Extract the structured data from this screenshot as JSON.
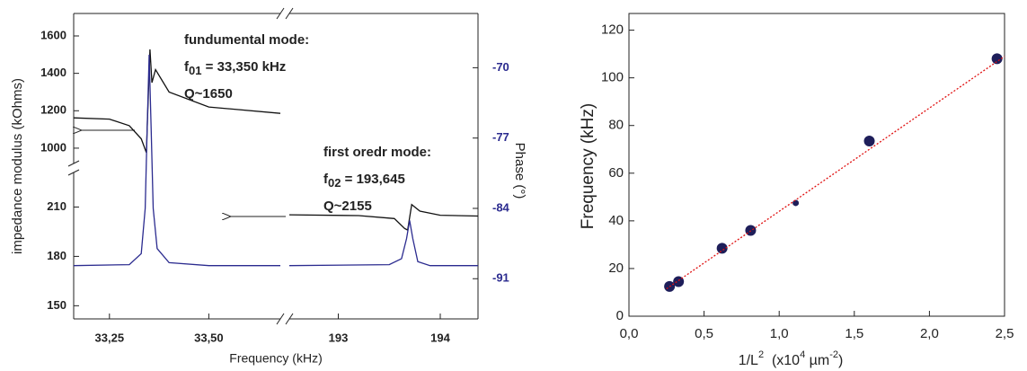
{
  "chart_data": [
    {
      "type": "line",
      "xlabel": "Frequency (kHz)",
      "ylabel": "impedance modulus (kOhms)",
      "y2label": "Phase (°)",
      "xsegments": [
        {
          "xlim": [
            33.16,
            33.68
          ],
          "xticks": [
            {
              "value": 33.25,
              "label": "33,25"
            },
            {
              "value": 33.5,
              "label": "33,50"
            }
          ]
        },
        {
          "xlim": [
            192.52,
            194.37
          ],
          "xticks": [
            193,
            194
          ]
        }
      ],
      "ysegments": [
        {
          "ylim": [
            142,
            231
          ],
          "yticks": [
            150,
            180,
            210
          ]
        },
        {
          "ylim": [
            918,
            1720
          ],
          "yticks": [
            1000,
            1200,
            1400,
            1600
          ]
        }
      ],
      "y2lim": [
        -95,
        -64.6
      ],
      "y2ticks": [
        -70,
        -77,
        -84,
        -91
      ],
      "y2color": "#2b2b8f",
      "series": [
        {
          "color": "#111111",
          "x": [
            33.16,
            33.25,
            33.3,
            33.33,
            33.343,
            33.348,
            33.352,
            33.357,
            33.366,
            33.4,
            33.5,
            33.68
          ],
          "values": [
            1162,
            1155,
            1120,
            1050,
            976,
            1300,
            1528,
            1350,
            1420,
            1300,
            1220,
            1186
          ]
        },
        {
          "color": "#111111",
          "x": [
            192.52,
            193.2,
            193.55,
            193.65,
            193.68,
            193.72,
            193.8,
            194.0,
            194.37
          ],
          "values": [
            205.3,
            204.8,
            203,
            197,
            196,
            211.5,
            207.5,
            205,
            204.5
          ]
        },
        {
          "color": "#2b2b8f",
          "axis": "y2",
          "x": [
            33.16,
            33.3,
            33.33,
            33.34,
            33.345,
            33.35,
            33.355,
            33.36,
            33.37,
            33.4,
            33.5,
            33.68
          ],
          "values": [
            -89.7,
            -89.6,
            -88.5,
            -84,
            -76,
            -68.7,
            -76,
            -84,
            -88,
            -89.4,
            -89.7,
            -89.7
          ]
        },
        {
          "color": "#2b2b8f",
          "axis": "y2",
          "x": [
            192.52,
            193.5,
            193.62,
            193.67,
            193.7,
            193.73,
            193.78,
            193.9,
            194.37
          ],
          "values": [
            -89.7,
            -89.6,
            -89,
            -87,
            -85.2,
            -87,
            -89.3,
            -89.7,
            -89.7
          ]
        }
      ],
      "mode_labels": [
        {
          "title": "fundumental mode:",
          "symbol": "f",
          "subscript": "01",
          "value": " = 33,350 kHz",
          "q": "Q~1650"
        },
        {
          "title": "first oredr mode:",
          "symbol": "f",
          "subscript": "02",
          "value": " = 193,645",
          "q": "Q~2155"
        }
      ]
    },
    {
      "type": "scatter",
      "ylabel": "Frequency (kHz)",
      "xlabel_parts": [
        "1/L",
        "2",
        "  (x10",
        "4",
        " µm",
        "-2",
        ")"
      ],
      "xlim": [
        0,
        2.5
      ],
      "ylim": [
        0,
        127
      ],
      "xticks": [
        {
          "value": 0,
          "label": "0,0"
        },
        {
          "value": 0.5,
          "label": "0,5"
        },
        {
          "value": 1,
          "label": "1,0"
        },
        {
          "value": 1.5,
          "label": "1,5"
        },
        {
          "value": 2,
          "label": "2,0"
        },
        {
          "value": 2.5,
          "label": "2,5"
        }
      ],
      "yticks": [
        0,
        20,
        40,
        60,
        80,
        100,
        120
      ],
      "series": [
        {
          "color": "#1e1e5a",
          "x": [
            0.27,
            0.33,
            0.62,
            0.81,
            1.11,
            1.6,
            2.45
          ],
          "values": [
            12.5,
            14.5,
            28.5,
            36,
            47.5,
            73.5,
            108
          ],
          "sizes": [
            6,
            6,
            6,
            6,
            3.5,
            6,
            6
          ]
        },
        {
          "color": "#e01010",
          "style": "dotted",
          "x": [
            0.25,
            2.5
          ],
          "values": [
            11.5,
            109
          ]
        }
      ]
    }
  ]
}
